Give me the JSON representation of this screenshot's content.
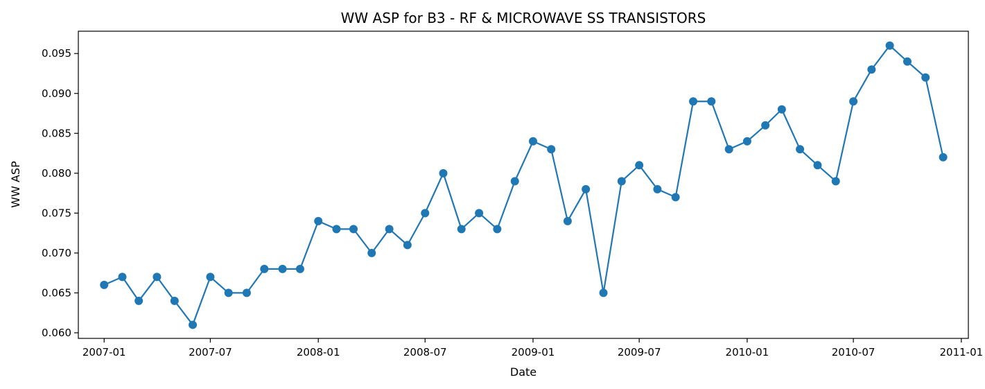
{
  "chart_data": {
    "type": "line",
    "title": "WW ASP for B3 - RF & MICROWAVE SS TRANSISTORS",
    "xlabel": "Date",
    "ylabel": "WW ASP",
    "xlim": [
      "2006-11-18",
      "2011-01-13"
    ],
    "ylim": [
      0.0593,
      0.0978
    ],
    "x_ticks": [
      "2007-01",
      "2007-07",
      "2008-01",
      "2008-07",
      "2009-01",
      "2009-07",
      "2010-01",
      "2010-07",
      "2011-01"
    ],
    "y_ticks": [
      "0.060",
      "0.065",
      "0.070",
      "0.075",
      "0.080",
      "0.085",
      "0.090",
      "0.095"
    ],
    "grid": false,
    "marker": "circle",
    "color": "#1f77b4",
    "series": [
      {
        "x": [
          "2007-01",
          "2007-02",
          "2007-03",
          "2007-04",
          "2007-05",
          "2007-06",
          "2007-07",
          "2007-08",
          "2007-09",
          "2007-10",
          "2007-11",
          "2007-12",
          "2008-01",
          "2008-02",
          "2008-03",
          "2008-04",
          "2008-05",
          "2008-06",
          "2008-07",
          "2008-08",
          "2008-09",
          "2008-10",
          "2008-11",
          "2008-12",
          "2009-01",
          "2009-02",
          "2009-03",
          "2009-04",
          "2009-05",
          "2009-06",
          "2009-07",
          "2009-08",
          "2009-09",
          "2009-10",
          "2009-11",
          "2009-12",
          "2010-01",
          "2010-02",
          "2010-03",
          "2010-04",
          "2010-05",
          "2010-06",
          "2010-07",
          "2010-08",
          "2010-09",
          "2010-10",
          "2010-11",
          "2010-12"
        ],
        "values": [
          0.066,
          0.067,
          0.064,
          0.067,
          0.064,
          0.061,
          0.067,
          0.065,
          0.065,
          0.068,
          0.068,
          0.068,
          0.074,
          0.073,
          0.073,
          0.07,
          0.073,
          0.071,
          0.075,
          0.08,
          0.073,
          0.075,
          0.073,
          0.079,
          0.084,
          0.083,
          0.074,
          0.078,
          0.065,
          0.079,
          0.081,
          0.078,
          0.077,
          0.089,
          0.089,
          0.083,
          0.084,
          0.086,
          0.088,
          0.083,
          0.081,
          0.079,
          0.089,
          0.093,
          0.096,
          0.094,
          0.092,
          0.082
        ]
      }
    ]
  }
}
